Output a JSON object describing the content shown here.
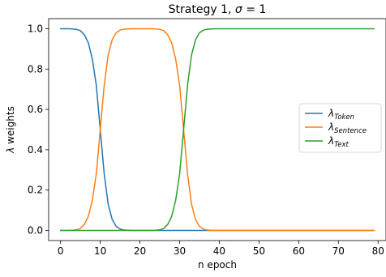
{
  "chart_data": {
    "type": "line",
    "title_prefix": "Strategy 1, ",
    "title_symbol": "σ",
    "title_suffix": " = 1",
    "xlabel": "n epoch",
    "ylabel_symbol": "λ",
    "ylabel_text": " weights",
    "xlim": [
      -3,
      82
    ],
    "ylim": [
      -0.05,
      1.05
    ],
    "xticks": [
      0,
      10,
      20,
      30,
      40,
      50,
      60,
      70,
      80
    ],
    "xtick_labels": [
      "0",
      "10",
      "20",
      "30",
      "40",
      "50",
      "60",
      "70",
      "80"
    ],
    "yticks": [
      0.0,
      0.2,
      0.4,
      0.6,
      0.8,
      1.0
    ],
    "ytick_labels": [
      "0.0",
      "0.2",
      "0.4",
      "0.6",
      "0.8",
      "1.0"
    ],
    "grid": false,
    "legend_position": "center-right",
    "x": [
      0,
      1,
      2,
      3,
      4,
      5,
      6,
      7,
      8,
      9,
      10,
      11,
      12,
      13,
      14,
      15,
      16,
      17,
      18,
      19,
      20,
      21,
      22,
      23,
      24,
      25,
      26,
      27,
      28,
      29,
      30,
      31,
      32,
      33,
      34,
      35,
      36,
      37,
      38,
      39,
      40,
      41,
      42,
      43,
      44,
      45,
      46,
      47,
      48,
      49,
      50,
      51,
      52,
      53,
      54,
      55,
      56,
      57,
      58,
      59,
      60,
      61,
      62,
      63,
      64,
      65,
      66,
      67,
      68,
      69,
      70,
      71,
      72,
      73,
      74,
      75,
      76,
      77,
      78,
      79
    ],
    "series": [
      {
        "name_symbol": "λ",
        "name_sub": "Token",
        "color": "#1f77b4",
        "values": [
          1.0,
          1.0,
          1.0,
          0.999,
          0.997,
          0.99,
          0.97,
          0.93,
          0.85,
          0.72,
          0.5,
          0.28,
          0.13,
          0.055,
          0.02,
          0.007,
          0.002,
          0.001,
          0,
          0,
          0,
          0,
          0,
          0,
          0,
          0,
          0,
          0,
          0,
          0,
          0,
          0,
          0,
          0,
          0,
          0,
          0,
          0,
          0,
          0,
          0,
          0,
          0,
          0,
          0,
          0,
          0,
          0,
          0,
          0,
          0,
          0,
          0,
          0,
          0,
          0,
          0,
          0,
          0,
          0,
          0,
          0,
          0,
          0,
          0,
          0,
          0,
          0,
          0,
          0,
          0,
          0,
          0,
          0,
          0,
          0,
          0,
          0,
          0,
          0
        ]
      },
      {
        "name_symbol": "λ",
        "name_sub": "Sentence",
        "color": "#ff7f0e",
        "values": [
          0,
          0,
          0,
          0.001,
          0.003,
          0.01,
          0.03,
          0.07,
          0.15,
          0.28,
          0.5,
          0.72,
          0.87,
          0.945,
          0.98,
          0.993,
          0.998,
          0.999,
          1.0,
          1.0,
          1.0,
          1.0,
          1.0,
          1.0,
          0.999,
          0.997,
          0.99,
          0.97,
          0.93,
          0.85,
          0.72,
          0.5,
          0.28,
          0.13,
          0.055,
          0.02,
          0.007,
          0.002,
          0.001,
          0,
          0,
          0,
          0,
          0,
          0,
          0,
          0,
          0,
          0,
          0,
          0,
          0,
          0,
          0,
          0,
          0,
          0,
          0,
          0,
          0,
          0,
          0,
          0,
          0,
          0,
          0,
          0,
          0,
          0,
          0,
          0,
          0,
          0,
          0,
          0,
          0,
          0,
          0,
          0,
          0
        ]
      },
      {
        "name_symbol": "λ",
        "name_sub": "Text",
        "color": "#2ca02c",
        "values": [
          0,
          0,
          0,
          0,
          0,
          0,
          0,
          0,
          0,
          0,
          0,
          0,
          0,
          0,
          0,
          0,
          0,
          0,
          0,
          0,
          0,
          0,
          0,
          0,
          0.001,
          0.003,
          0.01,
          0.03,
          0.07,
          0.15,
          0.28,
          0.5,
          0.72,
          0.87,
          0.945,
          0.98,
          0.993,
          0.998,
          0.999,
          1.0,
          1.0,
          1.0,
          1.0,
          1.0,
          1.0,
          1.0,
          1.0,
          1.0,
          1.0,
          1.0,
          1.0,
          1.0,
          1.0,
          1.0,
          1.0,
          1.0,
          1.0,
          1.0,
          1.0,
          1.0,
          1.0,
          1.0,
          1.0,
          1.0,
          1.0,
          1.0,
          1.0,
          1.0,
          1.0,
          1.0,
          1.0,
          1.0,
          1.0,
          1.0,
          1.0,
          1.0,
          1.0,
          1.0,
          1.0,
          1.0
        ]
      }
    ]
  }
}
